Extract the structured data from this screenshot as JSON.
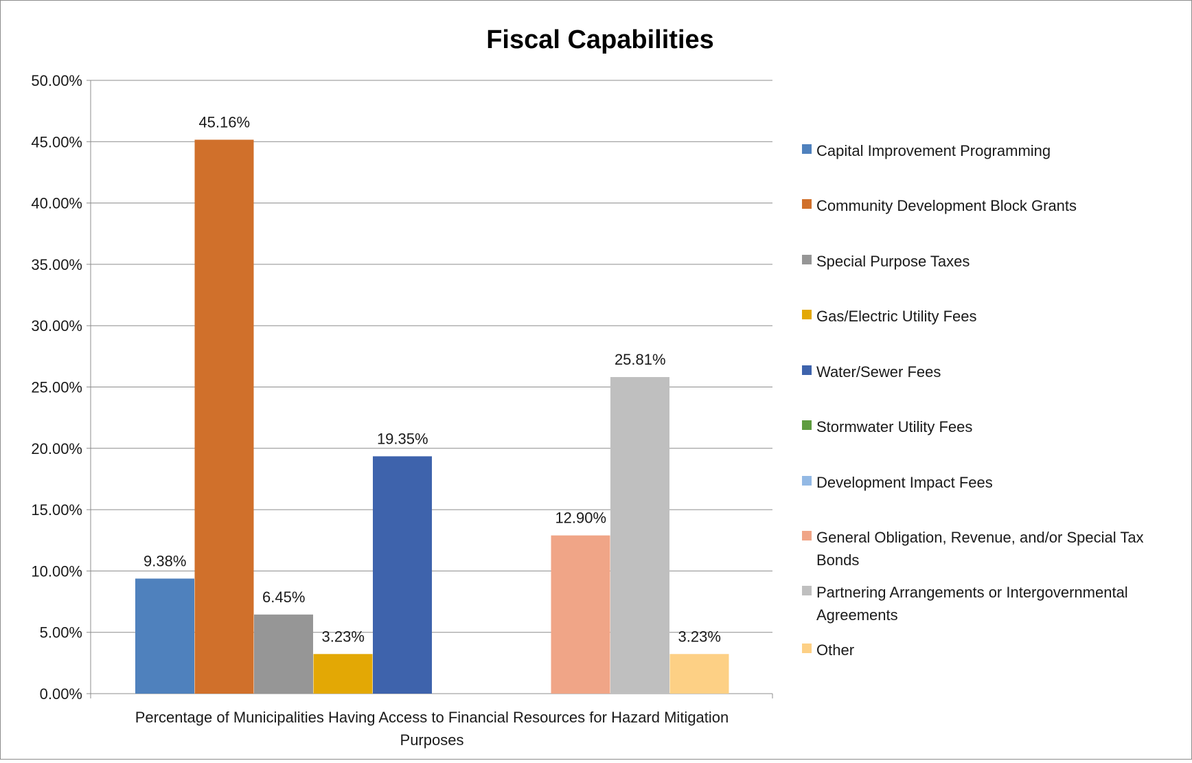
{
  "chart_data": {
    "type": "bar",
    "title": "Fiscal Capabilities",
    "xlabel": "Percentage of Municipalities Having Access to Financial Resources for Hazard Mitigation Purposes",
    "ylabel": "",
    "ylim": [
      0,
      50
    ],
    "yticks": [
      "0.00%",
      "5.00%",
      "10.00%",
      "15.00%",
      "20.00%",
      "25.00%",
      "30.00%",
      "35.00%",
      "40.00%",
      "45.00%",
      "50.00%"
    ],
    "grid": true,
    "legend_position": "right",
    "categories": [
      "Percentage of Municipalities Having Access to Financial Resources for Hazard Mitigation Purposes"
    ],
    "series": [
      {
        "name": "Capital Improvement Programming",
        "value": 9.38,
        "label": "9.38%",
        "color": "#4f81bd"
      },
      {
        "name": "Community Development Block Grants",
        "value": 45.16,
        "label": "45.16%",
        "color": "#d0702b"
      },
      {
        "name": "Special Purpose Taxes",
        "value": 6.45,
        "label": "6.45%",
        "color": "#969696"
      },
      {
        "name": "Gas/Electric Utility Fees",
        "value": 3.23,
        "label": "3.23%",
        "color": "#e3a805"
      },
      {
        "name": "Water/Sewer Fees",
        "value": 19.35,
        "label": "19.35%",
        "color": "#3e63ac"
      },
      {
        "name": "Stormwater Utility Fees",
        "value": 0,
        "label": "",
        "color": "#5e9c3f"
      },
      {
        "name": "Development Impact Fees",
        "value": 0,
        "label": "",
        "color": "#93b9e4"
      },
      {
        "name": "General Obligation, Revenue, and/or Special Tax Bonds",
        "value": 12.9,
        "label": "12.90%",
        "color": "#f0a587"
      },
      {
        "name": "Partnering Arrangements or Intergovernmental Agreements",
        "value": 25.81,
        "label": "25.81%",
        "color": "#bfbfbf"
      },
      {
        "name": "Other",
        "value": 3.23,
        "label": "3.23%",
        "color": "#fdd085"
      }
    ]
  }
}
